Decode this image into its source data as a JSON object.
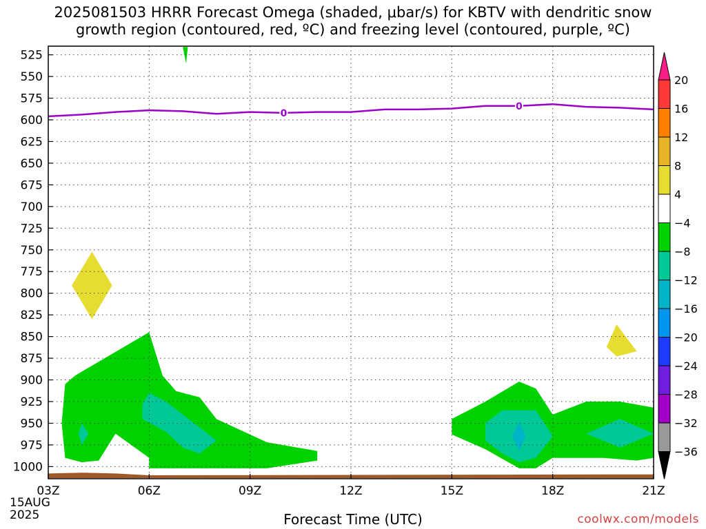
{
  "title_line1": "2025081503 HRRR Forecast Omega (shaded, μbar/s) for KBTV with dendritic snow",
  "title_line2": "growth region (contoured, red, ºC) and freezing level (contoured, purple, ºC)",
  "x_axis_title": "Forecast Time (UTC)",
  "date_line1": "15AUG",
  "date_line2": "2025",
  "source": "coolwx.com/models",
  "chart_data": {
    "type": "heatmap",
    "x_ticks": [
      "03Z",
      "06Z",
      "09Z",
      "12Z",
      "15Z",
      "18Z",
      "21Z"
    ],
    "x_range_hours": [
      3,
      21
    ],
    "y_ticks": [
      525,
      550,
      575,
      600,
      625,
      650,
      675,
      700,
      725,
      750,
      775,
      800,
      825,
      850,
      875,
      900,
      925,
      950,
      975,
      1000
    ],
    "y_range_hpa": [
      1014,
      515
    ],
    "y_axis_reversed": true,
    "grid": true,
    "colorbar": {
      "labels": [
        "20",
        "16",
        "12",
        "8",
        "4",
        "−4",
        "−8",
        "−12",
        "−16",
        "−20",
        "−24",
        "−28",
        "−32",
        "−36"
      ],
      "levels": [
        20,
        16,
        12,
        8,
        4,
        -4,
        -8,
        -12,
        -16,
        -20,
        -24,
        -28,
        -32,
        -36
      ],
      "colors": [
        "#f81e86",
        "#ff3838",
        "#ff8000",
        "#e8b428",
        "#e6dc32",
        "#ffffff",
        "#00d200",
        "#00c896",
        "#00b4c8",
        "#0096f0",
        "#1e3cff",
        "#6e1edc",
        "#a000c8",
        "#999999",
        "#000000"
      ]
    },
    "freezing_level": {
      "contour_label": "0",
      "color": "#9b00c8",
      "hours": [
        3,
        4,
        5,
        6,
        7,
        8,
        9,
        10,
        11,
        12,
        13,
        14,
        15,
        16,
        17,
        18,
        19,
        20,
        21
      ],
      "pressure": [
        596,
        594,
        591,
        589,
        590,
        593,
        591,
        592,
        591,
        591,
        588,
        588,
        587,
        584,
        584,
        582,
        585,
        586,
        588
      ]
    },
    "contour_labels_at_hours": [
      10,
      17
    ],
    "omega_regions": [
      {
        "level": 4,
        "color": "#e6dc32",
        "points": [
          [
            4.3,
            752
          ],
          [
            4.9,
            791
          ],
          [
            4.3,
            830
          ],
          [
            3.7,
            791
          ]
        ]
      },
      {
        "level": 4,
        "color": "#e6dc32",
        "points": [
          [
            19.9,
            836
          ],
          [
            20.5,
            867
          ],
          [
            19.9,
            873
          ],
          [
            19.6,
            862
          ]
        ]
      },
      {
        "level": -4,
        "color": "#00d200",
        "points": [
          [
            7.0,
            516
          ],
          [
            7.15,
            516
          ],
          [
            7.1,
            535
          ]
        ]
      },
      {
        "level": -4,
        "color": "#00d200",
        "points": [
          [
            3.5,
            905
          ],
          [
            3.8,
            895
          ],
          [
            6.0,
            845
          ],
          [
            6.4,
            895
          ],
          [
            6.8,
            913
          ],
          [
            7.5,
            920
          ],
          [
            8.0,
            945
          ],
          [
            9.5,
            972
          ],
          [
            11.0,
            982
          ],
          [
            11.0,
            993
          ],
          [
            9.5,
            1002
          ],
          [
            6.0,
            1002
          ],
          [
            6.0,
            990
          ],
          [
            5.0,
            962
          ],
          [
            4.5,
            993
          ],
          [
            4.0,
            995
          ],
          [
            3.5,
            990
          ],
          [
            3.4,
            950
          ]
        ]
      },
      {
        "level": -4,
        "color": "#00d200",
        "points": [
          [
            15.0,
            945
          ],
          [
            16.0,
            925
          ],
          [
            17.0,
            902
          ],
          [
            17.5,
            910
          ],
          [
            18.0,
            940
          ],
          [
            19.0,
            925
          ],
          [
            20.0,
            925
          ],
          [
            21.0,
            932
          ],
          [
            21.0,
            990
          ],
          [
            20.5,
            993
          ],
          [
            19.5,
            990
          ],
          [
            18.0,
            990
          ],
          [
            17.5,
            1002
          ],
          [
            17.0,
            1002
          ],
          [
            16.0,
            980
          ],
          [
            15.0,
            963
          ]
        ]
      },
      {
        "level": -8,
        "color": "#00c896",
        "points": [
          [
            5.8,
            928
          ],
          [
            6.0,
            915
          ],
          [
            6.5,
            925
          ],
          [
            7.5,
            955
          ],
          [
            8.0,
            970
          ],
          [
            7.5,
            985
          ],
          [
            7.0,
            978
          ],
          [
            6.5,
            960
          ],
          [
            5.8,
            945
          ]
        ]
      },
      {
        "level": -8,
        "color": "#00c896",
        "points": [
          [
            16.0,
            950
          ],
          [
            16.5,
            935
          ],
          [
            17.5,
            935
          ],
          [
            18.0,
            965
          ],
          [
            17.5,
            990
          ],
          [
            17.0,
            995
          ],
          [
            16.5,
            985
          ],
          [
            16.0,
            970
          ]
        ]
      },
      {
        "level": -8,
        "color": "#00c896",
        "points": [
          [
            4.0,
            950
          ],
          [
            4.2,
            962
          ],
          [
            4.0,
            975
          ],
          [
            3.9,
            962
          ]
        ]
      },
      {
        "level": -8,
        "color": "#00c896",
        "points": [
          [
            19.0,
            962
          ],
          [
            20.0,
            945
          ],
          [
            21.0,
            962
          ],
          [
            20.0,
            978
          ]
        ]
      },
      {
        "level": -12,
        "color": "#00b4c8",
        "points": [
          [
            17.0,
            948
          ],
          [
            17.2,
            965
          ],
          [
            17.0,
            982
          ],
          [
            16.8,
            965
          ]
        ]
      }
    ],
    "surface_terrain": {
      "color": "#a05a28",
      "hours": [
        3,
        4,
        5,
        6,
        21
      ],
      "pressure_top": [
        1008,
        1007,
        1008,
        1010,
        1009
      ]
    }
  }
}
